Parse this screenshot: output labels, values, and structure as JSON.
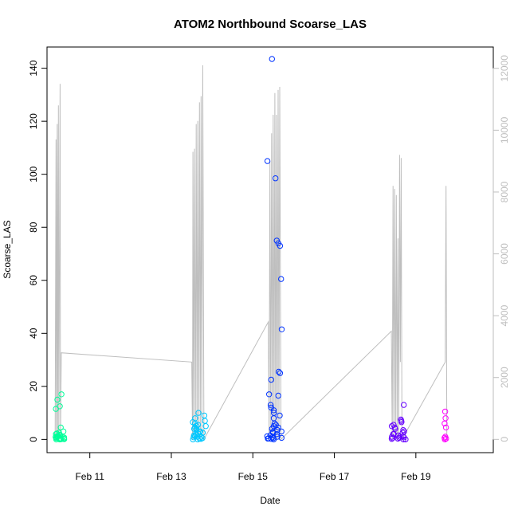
{
  "chart_data": {
    "type": "scatter",
    "title": "ATOM2 Northbound Scoarse_LAS",
    "xlabel": "Date",
    "ylabel": "Scoarse_LAS",
    "x_ticks": [
      {
        "day": 11,
        "label": "Feb 11"
      },
      {
        "day": 13,
        "label": "Feb 13"
      },
      {
        "day": 15,
        "label": "Feb 15"
      },
      {
        "day": 17,
        "label": "Feb 17"
      },
      {
        "day": 19,
        "label": "Feb 19"
      }
    ],
    "xlim_days": [
      9.95,
      20.9
    ],
    "ylim": [
      -5,
      148
    ],
    "yticks": [
      0,
      20,
      40,
      60,
      80,
      100,
      120,
      140
    ],
    "y2lim": [
      -430,
      12690
    ],
    "y2ticks": [
      0,
      2000,
      4000,
      6000,
      8000,
      10000,
      12000
    ],
    "clusters": [
      {
        "color": "#00ff99",
        "x_range": [
          10.15,
          10.38
        ],
        "values": [
          0,
          0.2,
          0.5,
          1.0,
          0.3,
          1.5,
          2.0,
          3.0,
          4.5,
          2.5,
          1.2,
          0.8,
          0.1,
          11.5,
          12.5,
          15,
          17,
          0.6,
          0.4,
          1.8,
          2.2,
          0.9,
          0.3,
          0.1,
          0,
          0.2,
          0.7,
          1.1
        ]
      },
      {
        "color": "#00c8ff",
        "x_range": [
          13.5,
          13.85
        ],
        "values": [
          0,
          0.3,
          1.0,
          2.0,
          4.0,
          5.0,
          5.5,
          6.0,
          3.0,
          4.0,
          1.5,
          2.5,
          3.5,
          5.0,
          6.5,
          7.0,
          8.0,
          9.0,
          10.0,
          4.5,
          3.0,
          1.0,
          0.5,
          0.2,
          0.8,
          1.2,
          2.2,
          0
        ]
      },
      {
        "color": "#0033ff",
        "x_range": [
          15.35,
          15.72
        ],
        "values": [
          0.3,
          0.5,
          1.0,
          2.0,
          3.0,
          4.0,
          5.0,
          6.0,
          8.0,
          9.0,
          10.0,
          11.0,
          12.0,
          13.0,
          16.5,
          17.0,
          22.5,
          25.5,
          25.0,
          41.5,
          60.5,
          73.0,
          74.0,
          75.0,
          98.5,
          105.0,
          143.5,
          0.8,
          1.5,
          2.5,
          3.5,
          4.5,
          0.2,
          0.6,
          1.2,
          2.8,
          5.5,
          0,
          0.4
        ]
      },
      {
        "color": "#6600ff",
        "x_range": [
          18.4,
          18.75
        ],
        "values": [
          0,
          0.3,
          0.8,
          1.0,
          1.5,
          2.0,
          2.5,
          3.0,
          4.0,
          5.0,
          5.5,
          6.5,
          7.0,
          7.5,
          13.0,
          4.5,
          3.5,
          2.0,
          1.0,
          0.5,
          0.2,
          0.6,
          1.2,
          0
        ]
      },
      {
        "color": "#ff00ff",
        "x_range": [
          19.7,
          19.78
        ],
        "values": [
          0,
          0.3,
          0.6,
          1.0,
          4.5,
          6.0,
          8.0,
          10.5
        ]
      }
    ],
    "secondary_series": {
      "color": "#bebebe",
      "points": [
        [
          10.15,
          0
        ],
        [
          10.17,
          9700
        ],
        [
          10.18,
          0
        ],
        [
          10.2,
          10200
        ],
        [
          10.21,
          0
        ],
        [
          10.23,
          10800
        ],
        [
          10.24,
          0
        ],
        [
          10.27,
          11500
        ],
        [
          10.28,
          0
        ],
        [
          10.3,
          2800
        ],
        [
          13.5,
          2500
        ],
        [
          13.52,
          0
        ],
        [
          13.53,
          9300
        ],
        [
          13.55,
          0
        ],
        [
          13.57,
          9400
        ],
        [
          13.59,
          0
        ],
        [
          13.61,
          10200
        ],
        [
          13.63,
          0
        ],
        [
          13.65,
          10300
        ],
        [
          13.67,
          0
        ],
        [
          13.69,
          10900
        ],
        [
          13.71,
          0
        ],
        [
          13.73,
          11100
        ],
        [
          13.75,
          0
        ],
        [
          13.77,
          12100
        ],
        [
          13.8,
          0
        ],
        [
          15.38,
          3800
        ],
        [
          15.4,
          0
        ],
        [
          15.42,
          9000
        ],
        [
          15.44,
          0
        ],
        [
          15.46,
          9900
        ],
        [
          15.48,
          0
        ],
        [
          15.5,
          10500
        ],
        [
          15.52,
          0
        ],
        [
          15.54,
          11200
        ],
        [
          15.56,
          0
        ],
        [
          15.58,
          10500
        ],
        [
          15.6,
          0
        ],
        [
          15.62,
          11300
        ],
        [
          15.64,
          0
        ],
        [
          15.66,
          11400
        ],
        [
          15.69,
          0
        ],
        [
          18.4,
          3500
        ],
        [
          18.42,
          0
        ],
        [
          18.44,
          8200
        ],
        [
          18.46,
          0
        ],
        [
          18.48,
          8100
        ],
        [
          18.5,
          0
        ],
        [
          18.52,
          7900
        ],
        [
          18.54,
          0
        ],
        [
          18.56,
          6500
        ],
        [
          18.58,
          0
        ],
        [
          18.6,
          9200
        ],
        [
          18.62,
          2500
        ],
        [
          18.64,
          9100
        ],
        [
          18.66,
          0
        ],
        [
          19.72,
          2500
        ],
        [
          19.74,
          8200
        ],
        [
          19.76,
          0
        ]
      ]
    }
  }
}
